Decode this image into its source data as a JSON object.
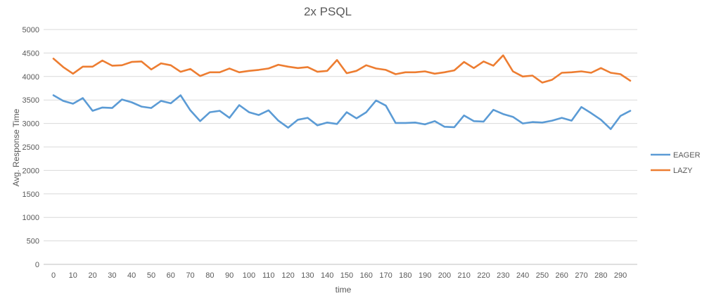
{
  "chart_data": {
    "type": "line",
    "title": "2x PSQL",
    "xlabel": "time",
    "ylabel": "Avg. Response Time",
    "ylim": [
      0,
      5000
    ],
    "yticks": [
      "0",
      "500",
      "1000",
      "1500",
      "2000",
      "2500",
      "3000",
      "3500",
      "4000",
      "4500",
      "5000"
    ],
    "xticks": [
      "0",
      "10",
      "20",
      "30",
      "40",
      "50",
      "60",
      "70",
      "80",
      "90",
      "100",
      "110",
      "120",
      "130",
      "140",
      "150",
      "160",
      "170",
      "180",
      "190",
      "200",
      "210",
      "220",
      "230",
      "240",
      "250",
      "260",
      "270",
      "280",
      "290"
    ],
    "grid": "horizontal",
    "legend_position": "right",
    "x": [
      0,
      5,
      10,
      15,
      20,
      25,
      30,
      35,
      40,
      45,
      50,
      55,
      60,
      65,
      70,
      75,
      80,
      85,
      90,
      95,
      100,
      105,
      110,
      115,
      120,
      125,
      130,
      135,
      140,
      145,
      150,
      155,
      160,
      165,
      170,
      175,
      180,
      185,
      190,
      195,
      200,
      205,
      210,
      215,
      220,
      225,
      230,
      235,
      240,
      245,
      250,
      255,
      260,
      265,
      270,
      275,
      280,
      285,
      290,
      295
    ],
    "series": [
      {
        "name": "EAGER",
        "color": "#5b9bd5",
        "values": [
          3600,
          3480,
          3420,
          3540,
          3270,
          3340,
          3330,
          3510,
          3450,
          3360,
          3330,
          3480,
          3430,
          3600,
          3280,
          3050,
          3240,
          3270,
          3120,
          3390,
          3240,
          3180,
          3280,
          3060,
          2910,
          3080,
          3120,
          2960,
          3020,
          2990,
          3240,
          3110,
          3240,
          3490,
          3380,
          3010,
          3010,
          3020,
          2980,
          3050,
          2930,
          2920,
          3170,
          3050,
          3040,
          3290,
          3200,
          3140,
          3000,
          3030,
          3020,
          3060,
          3120,
          3060,
          3350,
          3220,
          3080,
          2880,
          3160,
          3270
        ]
      },
      {
        "name": "LAZY",
        "color": "#ed7d31",
        "values": [
          4380,
          4200,
          4060,
          4210,
          4210,
          4340,
          4230,
          4240,
          4310,
          4320,
          4150,
          4280,
          4240,
          4100,
          4160,
          4010,
          4090,
          4090,
          4170,
          4090,
          4120,
          4140,
          4170,
          4250,
          4210,
          4180,
          4200,
          4100,
          4120,
          4350,
          4070,
          4120,
          4240,
          4170,
          4140,
          4050,
          4090,
          4090,
          4110,
          4060,
          4090,
          4130,
          4310,
          4180,
          4320,
          4230,
          4450,
          4110,
          4000,
          4020,
          3870,
          3930,
          4080,
          4090,
          4110,
          4080,
          4180,
          4080,
          4050,
          3910
        ]
      }
    ]
  }
}
